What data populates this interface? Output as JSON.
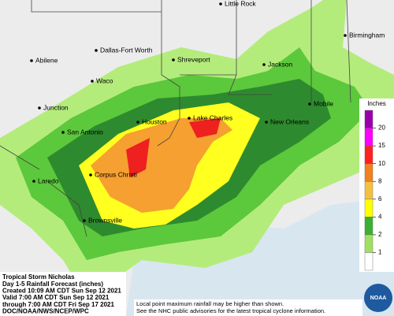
{
  "map": {
    "cities": [
      "Little Rock",
      "Birmingham",
      "Abilene",
      "Dallas-Fort Worth",
      "Shreveport",
      "Jackson",
      "Waco",
      "Junction",
      "Houston",
      "Lake Charles",
      "Mobile",
      "New Orleans",
      "San Antonio",
      "Corpus Christi",
      "Laredo",
      "Brownsville"
    ],
    "legend": {
      "title": "Inches",
      "ticks": [
        1,
        2,
        4,
        6,
        8,
        10,
        15,
        20
      ],
      "colors": [
        "#ffffff",
        "#a0e060",
        "#3cb030",
        "#ffff00",
        "#f5c040",
        "#f08020",
        "#ff2020",
        "#ff00ff",
        "#9900aa"
      ]
    },
    "info": [
      "Tropical Storm Nicholas",
      "Day 1-5 Rainfall Forecast (inches)",
      "Created 10:09 AM CDT Sun Sep 12 2021",
      "Valid 7:00 AM CDT Sun Sep 12 2021",
      "through 7:00 AM CDT Fri Sep 17 2021",
      "DOC/NOAA/NWS/NCEP/WPC"
    ],
    "footnote": [
      "Local point maximum rainfall may be higher than shown.",
      "See the NHC public advisories for the latest tropical cyclone information."
    ],
    "logo": "NOAA"
  }
}
